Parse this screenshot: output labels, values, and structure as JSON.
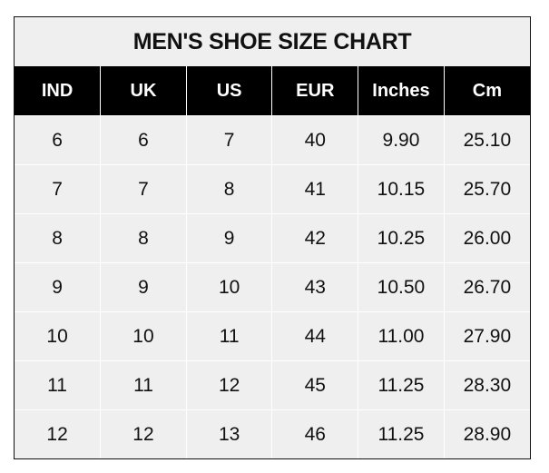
{
  "chart_data": {
    "type": "table",
    "title": "MEN'S SHOE SIZE CHART",
    "columns": [
      "IND",
      "UK",
      "US",
      "EUR",
      "Inches",
      "Cm"
    ],
    "rows": [
      [
        "6",
        "6",
        "7",
        "40",
        "9.90",
        "25.10"
      ],
      [
        "7",
        "7",
        "8",
        "41",
        "10.15",
        "25.70"
      ],
      [
        "8",
        "8",
        "9",
        "42",
        "10.25",
        "26.00"
      ],
      [
        "9",
        "9",
        "10",
        "43",
        "10.50",
        "26.70"
      ],
      [
        "10",
        "10",
        "11",
        "44",
        "11.00",
        "27.90"
      ],
      [
        "11",
        "11",
        "12",
        "45",
        "11.25",
        "28.30"
      ],
      [
        "12",
        "12",
        "13",
        "46",
        "11.25",
        "28.90"
      ]
    ]
  },
  "colors": {
    "header_bg": "#000000",
    "cell_bg": "#efefef",
    "grid": "#ffffff"
  }
}
